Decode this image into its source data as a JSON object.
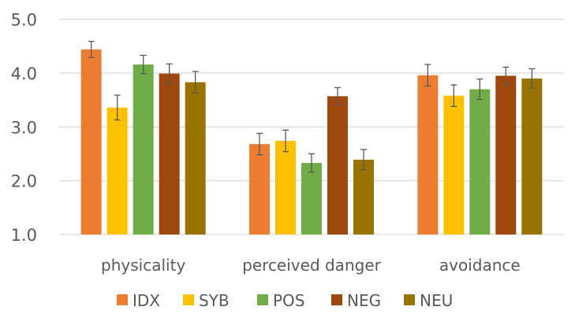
{
  "chart_data": {
    "type": "bar",
    "title": "",
    "xlabel": "",
    "ylabel": "",
    "ylim": [
      1.0,
      5.0
    ],
    "yticks": [
      "1.0",
      "2.0",
      "3.0",
      "4.0",
      "5.0"
    ],
    "ytick_values": [
      1,
      2,
      3,
      4,
      5
    ],
    "grid": true,
    "legend_position": "bottom",
    "categories": [
      "physicality",
      "perceived danger",
      "avoidance"
    ],
    "series": [
      {
        "name": "IDX",
        "color": "#ED7D31",
        "values": [
          4.44,
          2.68,
          3.96
        ],
        "errors": [
          0.15,
          0.2,
          0.2
        ]
      },
      {
        "name": "SYB",
        "color": "#FFC000",
        "values": [
          3.36,
          2.74,
          3.58
        ],
        "errors": [
          0.23,
          0.2,
          0.2
        ]
      },
      {
        "name": "POS",
        "color": "#70AD47",
        "values": [
          4.16,
          2.33,
          3.7
        ],
        "errors": [
          0.17,
          0.17,
          0.19
        ]
      },
      {
        "name": "NEG",
        "color": "#9E480E",
        "values": [
          3.99,
          3.57,
          3.95
        ],
        "errors": [
          0.18,
          0.16,
          0.16
        ]
      },
      {
        "name": "NEU",
        "color": "#997300",
        "values": [
          3.83,
          2.39,
          3.9
        ],
        "errors": [
          0.2,
          0.19,
          0.18
        ]
      }
    ]
  }
}
